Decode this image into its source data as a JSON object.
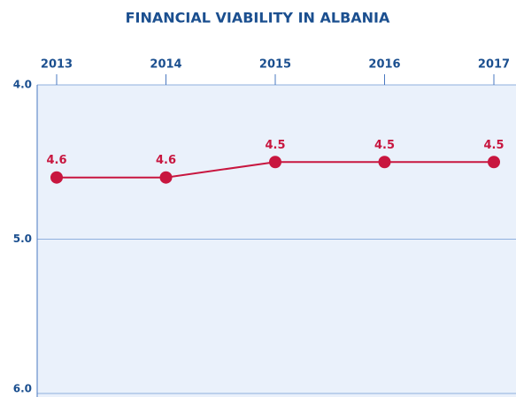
{
  "chart_data": {
    "type": "line",
    "title": "FINANCIAL VIABILITY IN ALBANIA",
    "categories": [
      "2013",
      "2014",
      "2015",
      "2016",
      "2017"
    ],
    "series": [
      {
        "name": "Financial Viability",
        "color": "#c8163f",
        "values": [
          4.6,
          4.6,
          4.5,
          4.5,
          4.5
        ]
      }
    ],
    "ylim": [
      4,
      6
    ],
    "inverted": true,
    "yticks": [
      {
        "value": 4,
        "label": "4.0"
      },
      {
        "value": 5,
        "label": "5.0"
      },
      {
        "value": 6,
        "label": "6.0"
      }
    ],
    "grid": true
  }
}
